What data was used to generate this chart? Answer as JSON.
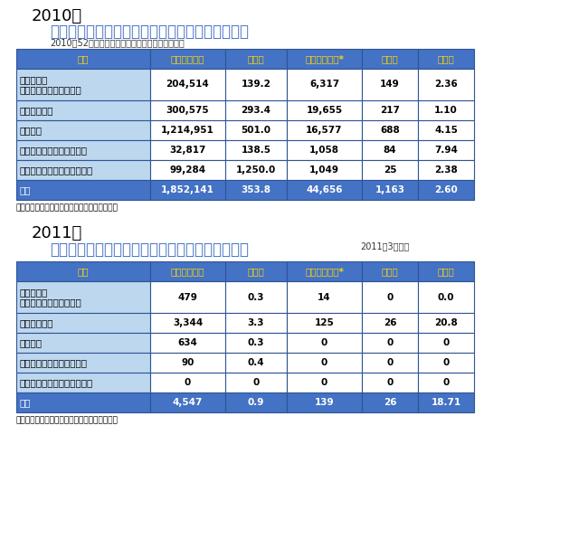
{
  "title_year1": "2010年",
  "title_main1": "アメリカ地域　デング症例数・重症者数・死亡数",
  "title_sub1": "2010年52週時点での暂定数（本文と相違がある）",
  "footnote1": "＊デング出血熱、デングショック症候群を含む",
  "title_year2": "2011年",
  "title_main2": "アメリカ地域　デング症例数・重症者数・死亡数",
  "title_sub2": "2011年3週時点",
  "footnote2": "＊デング出血熱、デングショック症候群を含む",
  "headers": [
    "地域",
    "デング熱総数",
    "発生率",
    "重症デング熱*",
    "死亡数",
    "致死率"
  ],
  "table1_rows": [
    [
      "北アメリカ\n中央アメリカ、メキシコ",
      "204,514",
      "139.2",
      "6,317",
      "149",
      "2.36"
    ],
    [
      "アンデス地域",
      "300,575",
      "293.4",
      "19,655",
      "217",
      "1.10"
    ],
    [
      "南部地域",
      "1,214,951",
      "501.0",
      "16,577",
      "688",
      "4.15"
    ],
    [
      "スペイン語圏カリブ海諸国",
      "32,817",
      "138.5",
      "1,058",
      "84",
      "7.94"
    ],
    [
      "非スペイン語圏カリブ海諸国",
      "99,284",
      "1,250.0",
      "1,049",
      "25",
      "2.38"
    ],
    [
      "総数",
      "1,852,141",
      "353.8",
      "44,656",
      "1,163",
      "2.60"
    ]
  ],
  "table2_rows": [
    [
      "北アメリカ\n中央アメリカ、メキシコ",
      "479",
      "0.3",
      "14",
      "0",
      "0.0"
    ],
    [
      "アンデス地域",
      "3,344",
      "3.3",
      "125",
      "26",
      "20.8"
    ],
    [
      "南部地域",
      "634",
      "0.3",
      "0",
      "0",
      "0"
    ],
    [
      "スペイン語圏カリブ海諸国",
      "90",
      "0.4",
      "0",
      "0",
      "0"
    ],
    [
      "非スペイン語圏カリブ海諸国",
      "0",
      "0",
      "0",
      "0",
      "0"
    ],
    [
      "総数",
      "4,547",
      "0.9",
      "139",
      "26",
      "18.71"
    ]
  ],
  "header_bg": "#4472C4",
  "header_fg": "#FFD700",
  "row_bg_light": "#BDD7EE",
  "row_bg_white": "#FFFFFF",
  "total_bg": "#4472C4",
  "total_fg": "#FFFFFF",
  "border_color": "#2F5496",
  "title_color": "#4472C4",
  "year_fontsize": 13,
  "main_fontsize": 12,
  "sub_fontsize": 7,
  "header_fontsize": 7.5,
  "cell_fontsize": 7.5,
  "footnote_fontsize": 6.5
}
